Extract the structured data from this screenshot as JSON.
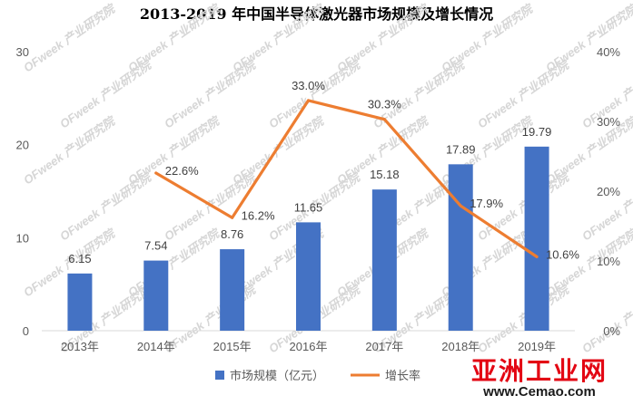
{
  "chart_data": {
    "type": "bar+line",
    "title": "2013-2019 年中国半导体激光器市场规模及增长情况",
    "categories": [
      "2013年",
      "2014年",
      "2015年",
      "2016年",
      "2017年",
      "2018年",
      "2019年"
    ],
    "series": [
      {
        "name": "市场规模（亿元）",
        "type": "bar",
        "axis": "left",
        "color": "#4472c4",
        "values": [
          6.15,
          7.54,
          8.76,
          11.65,
          15.18,
          17.89,
          19.79
        ],
        "labels": [
          "6.15",
          "7.54",
          "8.76",
          "11.65",
          "15.18",
          "17.89",
          "19.79"
        ]
      },
      {
        "name": "增长率",
        "type": "line",
        "axis": "right",
        "color": "#ed7d31",
        "values": [
          null,
          22.6,
          16.2,
          33.0,
          30.3,
          17.9,
          10.6
        ],
        "labels": [
          "",
          "22.6%",
          "16.2%",
          "33.0%",
          "30.3%",
          "17.9%",
          "10.6%"
        ]
      }
    ],
    "y_left": {
      "min": 0,
      "max": 30,
      "ticks": [
        "0",
        "10",
        "20",
        "30"
      ]
    },
    "y_right": {
      "min": 0,
      "max": 40,
      "ticks": [
        "0%",
        "10%",
        "20%",
        "30%",
        "40%"
      ]
    },
    "grid": false,
    "legend_position": "bottom"
  },
  "watermark": "OFweek 产业研究院",
  "logo": {
    "text": "亚洲工业网",
    "url": "www.Cemao.com",
    "color": "#e30613"
  }
}
